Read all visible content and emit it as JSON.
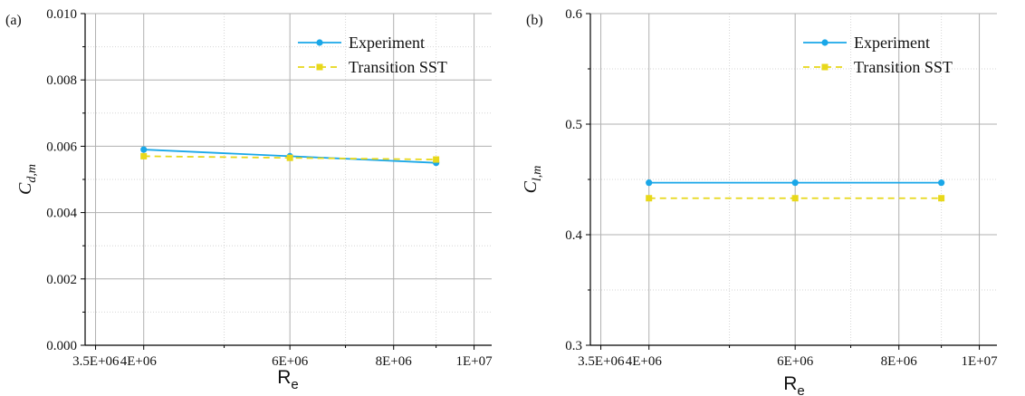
{
  "chart_data": [
    {
      "type": "line",
      "panel_label": "(a)",
      "xlabel_main": "R",
      "xlabel_sub": "e",
      "ylabel_main": "C",
      "ylabel_sub": "d,m",
      "x_scale": "log",
      "xlim": [
        3400000,
        10500000
      ],
      "ylim": [
        0,
        0.01
      ],
      "x_ticks": [
        {
          "value": 3500000,
          "label": "3.5E+06"
        },
        {
          "value": 4000000,
          "label": "4E+06"
        },
        {
          "value": 6000000,
          "label": "6E+06"
        },
        {
          "value": 8000000,
          "label": "8E+06"
        },
        {
          "value": 10000000,
          "label": "1E+07"
        }
      ],
      "y_ticks": [
        {
          "value": 0.0,
          "label": "0.000"
        },
        {
          "value": 0.002,
          "label": "0.002"
        },
        {
          "value": 0.004,
          "label": "0.004"
        },
        {
          "value": 0.006,
          "label": "0.006"
        },
        {
          "value": 0.008,
          "label": "0.008"
        },
        {
          "value": 0.01,
          "label": "0.010"
        }
      ],
      "grid": true,
      "legend_position": "top-right",
      "series": [
        {
          "name": "Experiment",
          "color": "#1aa7e8",
          "marker": "circle",
          "line": "solid",
          "x": [
            4000000,
            6000000,
            9000000
          ],
          "y": [
            0.0059,
            0.0057,
            0.0055
          ]
        },
        {
          "name": "Transition SST",
          "color": "#e8d81a",
          "marker": "square",
          "line": "dashed",
          "x": [
            4000000,
            6000000,
            9000000
          ],
          "y": [
            0.0057,
            0.00565,
            0.0056
          ]
        }
      ]
    },
    {
      "type": "line",
      "panel_label": "(b)",
      "xlabel_main": "R",
      "xlabel_sub": "e",
      "ylabel_main": "C",
      "ylabel_sub": "l,m",
      "x_scale": "log",
      "xlim": [
        3400000,
        10500000
      ],
      "ylim": [
        0.3,
        0.6
      ],
      "x_ticks": [
        {
          "value": 3500000,
          "label": "3.5E+06"
        },
        {
          "value": 4000000,
          "label": "4E+06"
        },
        {
          "value": 6000000,
          "label": "6E+06"
        },
        {
          "value": 8000000,
          "label": "8E+06"
        },
        {
          "value": 10000000,
          "label": "1E+07"
        }
      ],
      "y_ticks": [
        {
          "value": 0.3,
          "label": "0.3"
        },
        {
          "value": 0.4,
          "label": "0.4"
        },
        {
          "value": 0.5,
          "label": "0.5"
        },
        {
          "value": 0.6,
          "label": "0.6"
        }
      ],
      "grid": true,
      "legend_position": "top-right",
      "series": [
        {
          "name": "Experiment",
          "color": "#1aa7e8",
          "marker": "circle",
          "line": "solid",
          "x": [
            4000000,
            6000000,
            9000000
          ],
          "y": [
            0.447,
            0.447,
            0.447
          ]
        },
        {
          "name": "Transition SST",
          "color": "#e8d81a",
          "marker": "square",
          "line": "dashed",
          "x": [
            4000000,
            6000000,
            9000000
          ],
          "y": [
            0.433,
            0.433,
            0.433
          ]
        }
      ]
    }
  ]
}
